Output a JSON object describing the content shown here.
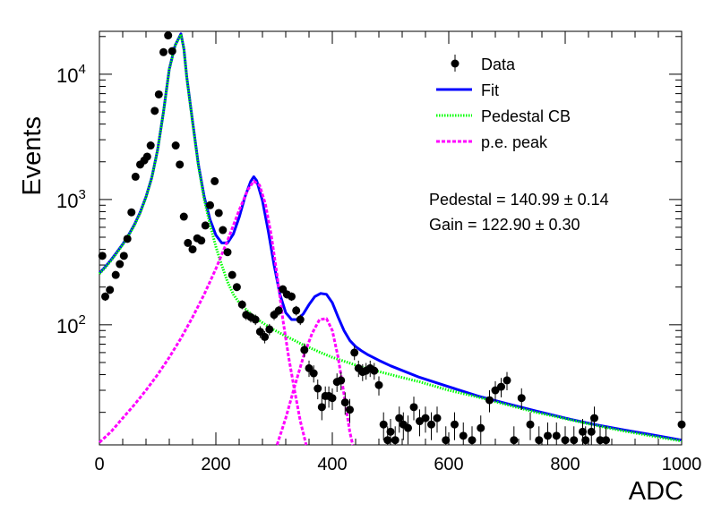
{
  "chart_data": {
    "type": "scatter",
    "title": "",
    "xlabel": "ADC",
    "ylabel": "Events",
    "xlim": [
      0,
      1000
    ],
    "ylim": [
      11,
      22000
    ],
    "yscale": "log",
    "x_ticks": [
      {
        "value": 0,
        "label": "0"
      },
      {
        "value": 200,
        "label": "200"
      },
      {
        "value": 400,
        "label": "400"
      },
      {
        "value": 600,
        "label": "600"
      },
      {
        "value": 800,
        "label": "800"
      },
      {
        "value": 1000,
        "label": "1000"
      }
    ],
    "y_ticks": [
      {
        "value": 100,
        "base": "10",
        "exp": "2"
      },
      {
        "value": 1000,
        "base": "10",
        "exp": "3"
      },
      {
        "value": 10000,
        "base": "10",
        "exp": "4"
      }
    ],
    "legend": {
      "position": "top-right",
      "entries": [
        {
          "label": "Data",
          "style": "marker",
          "color": "#000000"
        },
        {
          "label": "Fit",
          "style": "solid",
          "color": "#0000ff"
        },
        {
          "label": "Pedestal CB",
          "style": "dotted",
          "color": "#00ff00"
        },
        {
          "label": "p.e. peak",
          "style": "dashed",
          "color": "#ff00ff"
        }
      ]
    },
    "annotations": [
      {
        "label": "Pedestal",
        "value": "140.99",
        "error": "0.14"
      },
      {
        "label": "Gain",
        "value": "122.90",
        "error": "0.30"
      }
    ],
    "series": [
      {
        "name": "Data",
        "style": "marker",
        "color": "#000000",
        "points": [
          [
            5,
            355
          ],
          [
            10,
            168
          ],
          [
            18,
            190
          ],
          [
            28,
            250
          ],
          [
            35,
            305
          ],
          [
            42,
            355
          ],
          [
            48,
            485
          ],
          [
            55,
            790
          ],
          [
            62,
            1520
          ],
          [
            70,
            1900
          ],
          [
            77,
            2050
          ],
          [
            82,
            2200
          ],
          [
            88,
            2700
          ],
          [
            95,
            5100
          ],
          [
            102,
            6900
          ],
          [
            110,
            15000
          ],
          [
            118,
            20400
          ],
          [
            125,
            15300
          ],
          [
            131,
            2700
          ],
          [
            138,
            1900
          ],
          [
            145,
            730
          ],
          [
            152,
            450
          ],
          [
            160,
            400
          ],
          [
            168,
            490
          ],
          [
            175,
            470
          ],
          [
            182,
            620
          ],
          [
            190,
            900
          ],
          [
            198,
            1400
          ],
          [
            205,
            780
          ],
          [
            212,
            570
          ],
          [
            220,
            380
          ],
          [
            228,
            250
          ],
          [
            236,
            200
          ],
          [
            245,
            145
          ],
          [
            252,
            120
          ],
          [
            260,
            115
          ],
          [
            268,
            110
          ],
          [
            276,
            88
          ],
          [
            284,
            80
          ],
          [
            292,
            92
          ],
          [
            300,
            120
          ],
          [
            308,
            130
          ],
          [
            315,
            192
          ],
          [
            322,
            175
          ],
          [
            330,
            168
          ],
          [
            338,
            130
          ],
          [
            345,
            110
          ],
          [
            352,
            63
          ],
          [
            360,
            45
          ],
          [
            368,
            41
          ],
          [
            375,
            31
          ],
          [
            382,
            22
          ],
          [
            388,
            27
          ],
          [
            394,
            27
          ],
          [
            400,
            26
          ],
          [
            408,
            35
          ],
          [
            415,
            36
          ],
          [
            422,
            24
          ],
          [
            430,
            21
          ],
          [
            438,
            60
          ],
          [
            445,
            45
          ],
          [
            452,
            42
          ],
          [
            458,
            43
          ],
          [
            465,
            45
          ],
          [
            472,
            43
          ],
          [
            480,
            33
          ],
          [
            488,
            16
          ],
          [
            495,
            12
          ],
          [
            500,
            14
          ],
          [
            508,
            12
          ],
          [
            515,
            18
          ],
          [
            522,
            16
          ],
          [
            530,
            15
          ],
          [
            540,
            22
          ],
          [
            550,
            17
          ],
          [
            560,
            18
          ],
          [
            570,
            16
          ],
          [
            580,
            18
          ],
          [
            595,
            12
          ],
          [
            610,
            16
          ],
          [
            625,
            13
          ],
          [
            640,
            12
          ],
          [
            655,
            15
          ],
          [
            670,
            25
          ],
          [
            680,
            30
          ],
          [
            690,
            32
          ],
          [
            700,
            36
          ],
          [
            712,
            12
          ],
          [
            725,
            26
          ],
          [
            740,
            16
          ],
          [
            755,
            12
          ],
          [
            770,
            13
          ],
          [
            785,
            13
          ],
          [
            800,
            12
          ],
          [
            815,
            12
          ],
          [
            830,
            14
          ],
          [
            835,
            12
          ],
          [
            845,
            14
          ],
          [
            850,
            18
          ],
          [
            860,
            12
          ],
          [
            870,
            12
          ],
          [
            1000,
            16
          ]
        ]
      },
      {
        "name": "Fit",
        "style": "solid",
        "color": "#0000ff",
        "points": [
          [
            0,
            258
          ],
          [
            10,
            290
          ],
          [
            20,
            330
          ],
          [
            30,
            380
          ],
          [
            40,
            440
          ],
          [
            50,
            520
          ],
          [
            60,
            630
          ],
          [
            70,
            790
          ],
          [
            80,
            1050
          ],
          [
            90,
            1500
          ],
          [
            100,
            2500
          ],
          [
            110,
            5000
          ],
          [
            120,
            11000
          ],
          [
            130,
            17000
          ],
          [
            140,
            21000
          ],
          [
            145,
            16000
          ],
          [
            150,
            9500
          ],
          [
            160,
            4200
          ],
          [
            170,
            1900
          ],
          [
            180,
            1050
          ],
          [
            190,
            690
          ],
          [
            200,
            520
          ],
          [
            210,
            450
          ],
          [
            220,
            450
          ],
          [
            230,
            530
          ],
          [
            240,
            720
          ],
          [
            250,
            1050
          ],
          [
            260,
            1400
          ],
          [
            265,
            1520
          ],
          [
            270,
            1420
          ],
          [
            280,
            980
          ],
          [
            290,
            560
          ],
          [
            300,
            300
          ],
          [
            310,
            175
          ],
          [
            320,
            125
          ],
          [
            330,
            110
          ],
          [
            340,
            110
          ],
          [
            350,
            122
          ],
          [
            360,
            145
          ],
          [
            370,
            168
          ],
          [
            380,
            178
          ],
          [
            390,
            175
          ],
          [
            400,
            150
          ],
          [
            410,
            115
          ],
          [
            420,
            90
          ],
          [
            430,
            75
          ],
          [
            440,
            67
          ],
          [
            450,
            62
          ],
          [
            460,
            58
          ],
          [
            480,
            52
          ],
          [
            500,
            47
          ],
          [
            550,
            38
          ],
          [
            600,
            32
          ],
          [
            650,
            27
          ],
          [
            700,
            23.5
          ],
          [
            750,
            20.5
          ],
          [
            800,
            18
          ],
          [
            850,
            16
          ],
          [
            900,
            14.5
          ],
          [
            950,
            13.2
          ],
          [
            1000,
            12
          ]
        ]
      },
      {
        "name": "Pedestal CB",
        "style": "dotted",
        "color": "#00ff00",
        "points": [
          [
            0,
            255
          ],
          [
            10,
            287
          ],
          [
            20,
            325
          ],
          [
            30,
            375
          ],
          [
            40,
            435
          ],
          [
            50,
            515
          ],
          [
            60,
            620
          ],
          [
            70,
            780
          ],
          [
            80,
            1040
          ],
          [
            90,
            1490
          ],
          [
            100,
            2480
          ],
          [
            110,
            4980
          ],
          [
            120,
            10900
          ],
          [
            130,
            16900
          ],
          [
            140,
            20800
          ],
          [
            145,
            15900
          ],
          [
            150,
            9400
          ],
          [
            160,
            4100
          ],
          [
            170,
            1850
          ],
          [
            180,
            1000
          ],
          [
            190,
            630
          ],
          [
            200,
            420
          ],
          [
            210,
            300
          ],
          [
            220,
            220
          ],
          [
            230,
            175
          ],
          [
            240,
            150
          ],
          [
            250,
            135
          ],
          [
            260,
            122
          ],
          [
            270,
            112
          ],
          [
            280,
            104
          ],
          [
            290,
            97
          ],
          [
            300,
            91
          ],
          [
            310,
            86
          ],
          [
            320,
            81
          ],
          [
            330,
            77
          ],
          [
            340,
            73
          ],
          [
            350,
            69
          ],
          [
            360,
            66
          ],
          [
            380,
            60
          ],
          [
            400,
            55
          ],
          [
            450,
            46
          ],
          [
            500,
            40
          ],
          [
            550,
            35
          ],
          [
            600,
            30
          ],
          [
            650,
            26.5
          ],
          [
            700,
            23
          ],
          [
            750,
            20
          ],
          [
            800,
            17.8
          ],
          [
            850,
            15.8
          ],
          [
            900,
            14.2
          ],
          [
            950,
            12.9
          ],
          [
            1000,
            11.8
          ]
        ]
      },
      {
        "name": "p.e. peak",
        "style": "dashed",
        "color": "#ff00ff",
        "points": [
          [
            0,
            11.5
          ],
          [
            20,
            14
          ],
          [
            40,
            18
          ],
          [
            60,
            23
          ],
          [
            80,
            30
          ],
          [
            100,
            40
          ],
          [
            120,
            55
          ],
          [
            140,
            78
          ],
          [
            160,
            115
          ],
          [
            180,
            175
          ],
          [
            200,
            280
          ],
          [
            220,
            470
          ],
          [
            240,
            820
          ],
          [
            255,
            1200
          ],
          [
            265,
            1400
          ],
          [
            275,
            1300
          ],
          [
            285,
            920
          ],
          [
            295,
            520
          ],
          [
            305,
            250
          ],
          [
            315,
            110
          ],
          [
            325,
            55
          ],
          [
            335,
            30
          ],
          [
            345,
            17
          ],
          [
            355,
            11
          ]
        ]
      },
      {
        "name": "p.e. peak 2",
        "style": "dashed",
        "color": "#ff00ff",
        "points": [
          [
            305,
            11
          ],
          [
            320,
            18
          ],
          [
            335,
            32
          ],
          [
            350,
            55
          ],
          [
            365,
            85
          ],
          [
            378,
            110
          ],
          [
            390,
            112
          ],
          [
            400,
            90
          ],
          [
            410,
            55
          ],
          [
            420,
            28
          ],
          [
            430,
            14
          ],
          [
            435,
            11
          ]
        ]
      }
    ]
  }
}
